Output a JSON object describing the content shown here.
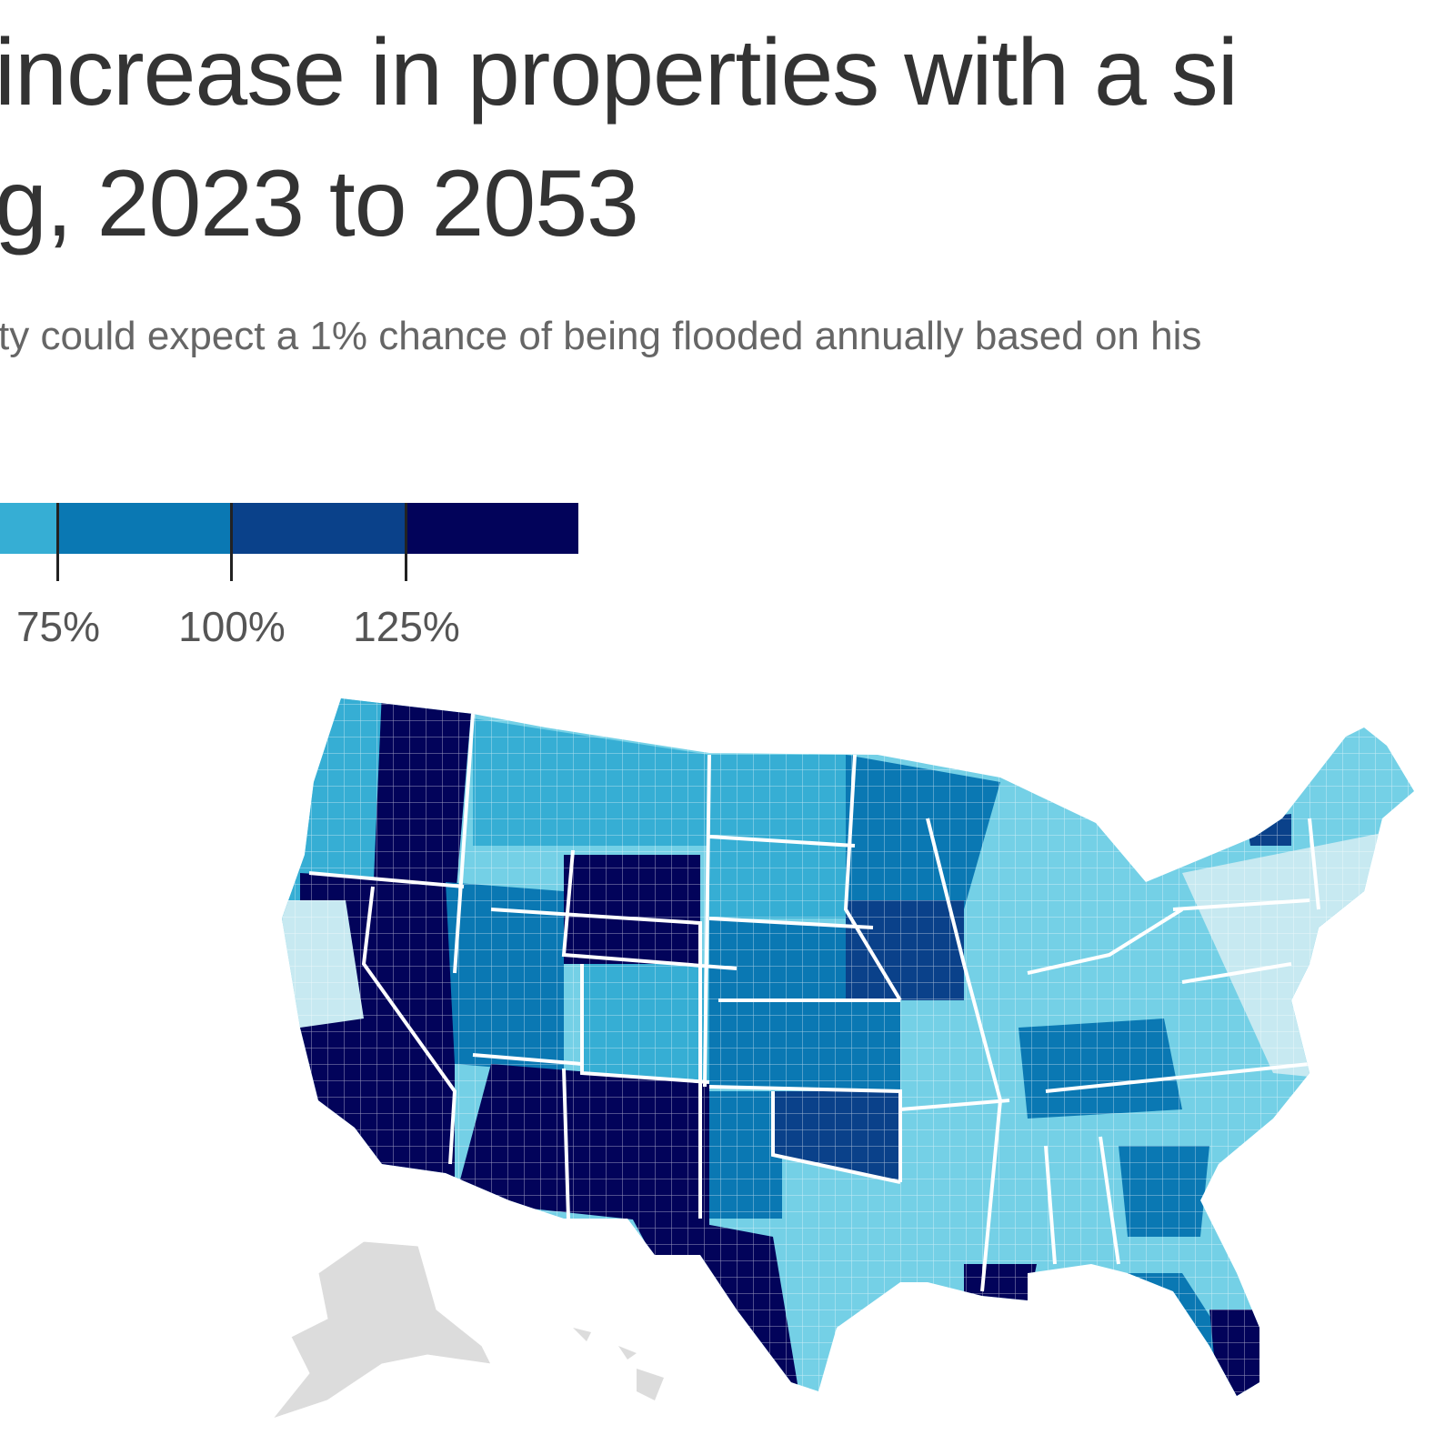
{
  "title_lines": [
    "increase in properties with a si",
    "g, 2023 to 2053"
  ],
  "subtitle": "ty could expect a 1% chance of being flooded annually based on his",
  "legend": {
    "colors": [
      "#36aed4",
      "#0a78b3",
      "#0a418a",
      "#02035a"
    ],
    "ticks": [
      "75%",
      "100%",
      "125%"
    ]
  },
  "map": {
    "palette": {
      "lightest": "#c7e9f1",
      "light": "#74d0e6",
      "mid": "#36aed4",
      "blue": "#0a78b3",
      "darkblue": "#0a418a",
      "darkest": "#02035a",
      "inset": "#dcdcdc"
    }
  }
}
